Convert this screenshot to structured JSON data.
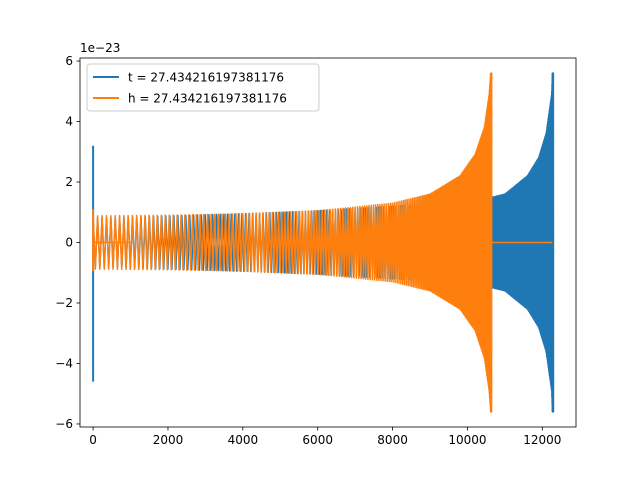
{
  "chart_data": {
    "type": "line",
    "title": "",
    "xlabel": "",
    "ylabel": "",
    "y_offset_label": "1e−23",
    "xlim": [
      -350,
      12900
    ],
    "ylim": [
      -6.1,
      6.1
    ],
    "x_ticks": [
      0,
      2000,
      4000,
      6000,
      8000,
      10000,
      12000
    ],
    "x_tick_labels": [
      "0",
      "2000",
      "4000",
      "6000",
      "8000",
      "10000",
      "12000"
    ],
    "y_ticks": [
      -6,
      -4,
      -2,
      0,
      2,
      4,
      6
    ],
    "y_tick_labels": [
      "−6",
      "−4",
      "−2",
      "0",
      "2",
      "4",
      "6"
    ],
    "grid": false,
    "legend_position": "upper-left",
    "series": [
      {
        "name": "t = 27.434216197381176",
        "color": "#1f77b4",
        "x_start": 0,
        "x_end": 12300,
        "envelope": [
          [
            0,
            0.8
          ],
          [
            2000,
            0.88
          ],
          [
            4000,
            0.95
          ],
          [
            6000,
            1.05
          ],
          [
            8000,
            1.2
          ],
          [
            10000,
            1.3
          ],
          [
            11000,
            1.6
          ],
          [
            11600,
            2.2
          ],
          [
            11900,
            2.8
          ],
          [
            12100,
            3.6
          ],
          [
            12250,
            4.9
          ],
          [
            12270,
            5.6
          ]
        ],
        "spikes": [
          {
            "x": 0,
            "min": -4.6,
            "max": 3.2
          }
        ]
      },
      {
        "name": "h = 27.434216197381176",
        "color": "#ff7f0e",
        "x_start": 0,
        "x_end": 10650,
        "envelope": [
          [
            0,
            0.88
          ],
          [
            2000,
            0.9
          ],
          [
            4000,
            0.95
          ],
          [
            6000,
            1.05
          ],
          [
            8000,
            1.3
          ],
          [
            9000,
            1.6
          ],
          [
            9800,
            2.2
          ],
          [
            10200,
            2.9
          ],
          [
            10450,
            3.8
          ],
          [
            10580,
            4.9
          ],
          [
            10620,
            5.6
          ]
        ],
        "spikes": [
          {
            "x": 0,
            "min": -0.95,
            "max": 1.1
          }
        ],
        "zero_tail_to": 12270,
        "flat_segment": [
          0,
          1000
        ]
      }
    ]
  }
}
